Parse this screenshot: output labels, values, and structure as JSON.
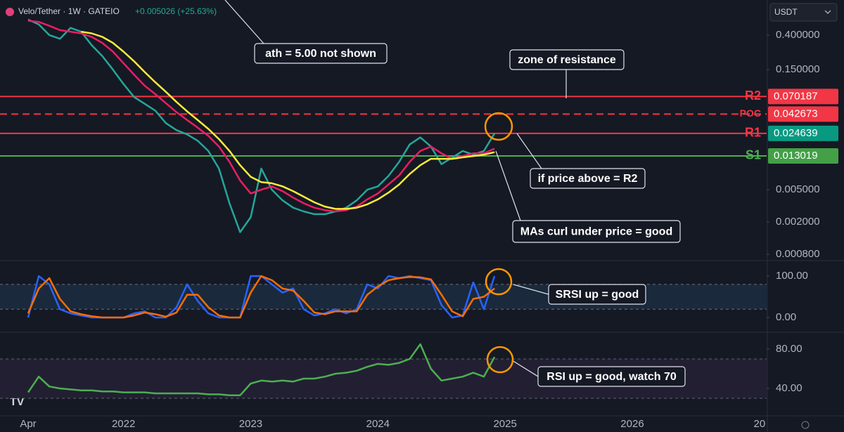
{
  "header": {
    "symbol": "Velo/Tether · 1W · GATEIO",
    "change": "+0.005026 (+25.63%)",
    "currency": "USDT"
  },
  "annotations": [
    "ath = 5.00 not shown",
    "zone of resistance",
    "if price above = R2",
    "MAs curl under price = good",
    "SRSI up = good",
    "RSI up = good, watch 70"
  ],
  "chart_data": [
    {
      "type": "line",
      "log_scale": true,
      "categories": [
        "Apr",
        null,
        null,
        null,
        null,
        null,
        null,
        null,
        null,
        "2022",
        null,
        null,
        null,
        null,
        null,
        null,
        null,
        null,
        null,
        null,
        null,
        "2023",
        null,
        null,
        null,
        null,
        null,
        null,
        null,
        null,
        null,
        null,
        null,
        "2024",
        null,
        null,
        null,
        null,
        null,
        null,
        null,
        null,
        null,
        null,
        null,
        "2025",
        null,
        null,
        null,
        null,
        null,
        null,
        null,
        null,
        null,
        null,
        null,
        "2026",
        null,
        null,
        null,
        null,
        null,
        null,
        null,
        null,
        null,
        null,
        null,
        "20"
      ],
      "ylim": [
        0.000684,
        1.08
      ],
      "yticks": [
        {
          "value": 0.4,
          "label": "0.400000"
        },
        {
          "value": 0.15,
          "label": "0.150000"
        },
        {
          "value": 0.005,
          "label": "0.005000"
        },
        {
          "value": 0.002,
          "label": "0.002000"
        },
        {
          "value": 0.0008,
          "label": "0.000800"
        }
      ],
      "series": [
        {
          "color": "#26a69a",
          "values": [
            0.62,
            0.54,
            0.4,
            0.36,
            0.49,
            0.44,
            0.3,
            0.22,
            0.15,
            0.1,
            0.069,
            0.057,
            0.047,
            0.033,
            0.027,
            0.024,
            0.02,
            0.015,
            0.0091,
            0.0034,
            0.0015,
            0.0023,
            0.0091,
            0.005,
            0.0037,
            0.003,
            0.0027,
            0.0025,
            0.0025,
            0.0027,
            0.003,
            0.0037,
            0.005,
            0.0055,
            0.0074,
            0.011,
            0.018,
            0.022,
            0.017,
            0.0103,
            0.0124,
            0.015,
            0.0135,
            0.015,
            0.0246,
            null,
            null,
            null,
            null,
            null,
            null,
            null,
            null,
            null,
            null,
            null,
            null,
            null,
            null,
            null,
            null,
            null,
            null,
            null,
            null,
            null,
            null,
            null,
            null,
            null
          ]
        },
        {
          "color": "#e91e63",
          "values": [
            0.6,
            0.58,
            0.52,
            0.46,
            0.44,
            0.42,
            0.38,
            0.32,
            0.25,
            0.18,
            0.13,
            0.095,
            0.075,
            0.058,
            0.045,
            0.036,
            0.029,
            0.023,
            0.017,
            0.011,
            0.0065,
            0.0045,
            0.005,
            0.0055,
            0.0048,
            0.004,
            0.0034,
            0.003,
            0.0028,
            0.0027,
            0.0028,
            0.0031,
            0.0038,
            0.0045,
            0.0058,
            0.0075,
            0.011,
            0.015,
            0.017,
            0.014,
            0.012,
            0.013,
            0.014,
            0.014,
            0.016,
            null,
            null,
            null,
            null,
            null,
            null,
            null,
            null,
            null,
            null,
            null,
            null,
            null,
            null,
            null,
            null,
            null,
            null,
            null,
            null,
            null,
            null,
            null,
            null,
            null
          ]
        },
        {
          "color": "#ffeb3b",
          "values": [
            null,
            null,
            null,
            null,
            null,
            0.44,
            0.42,
            0.38,
            0.32,
            0.25,
            0.19,
            0.14,
            0.105,
            0.08,
            0.06,
            0.046,
            0.036,
            0.028,
            0.021,
            0.015,
            0.01,
            0.0072,
            0.0062,
            0.006,
            0.0055,
            0.0048,
            0.0041,
            0.0035,
            0.0031,
            0.0029,
            0.0029,
            0.003,
            0.0033,
            0.0038,
            0.0046,
            0.0058,
            0.0078,
            0.01,
            0.012,
            0.012,
            0.012,
            0.0125,
            0.013,
            0.0135,
            0.0145,
            null,
            null,
            null,
            null,
            null,
            null,
            null,
            null,
            null,
            null,
            null,
            null,
            null,
            null,
            null,
            null,
            null,
            null,
            null,
            null,
            null,
            null,
            null,
            null,
            null
          ]
        }
      ],
      "levels": [
        {
          "name": "R2",
          "value": 0.070187,
          "color": "#f23645",
          "label_color": "#f23645",
          "dashed": false
        },
        {
          "name": "POC",
          "value": 0.042673,
          "color": "#f23645",
          "label_color": "#f23645",
          "dashed": true
        },
        {
          "name": "R1",
          "value": 0.024639,
          "color": "#f23645",
          "label_color": "#089981",
          "dashed": false
        },
        {
          "name": "S1",
          "value": 0.013019,
          "color": "#4caf50",
          "label_color": "#43a047",
          "dashed": false
        }
      ]
    },
    {
      "type": "line",
      "ylim": [
        -30.5,
        135.6
      ],
      "band": [
        20,
        80
      ],
      "band_color": "#1a2a3c",
      "yticks": [
        {
          "value": 100,
          "label": "100.00"
        },
        {
          "value": 0,
          "label": "0.00"
        }
      ],
      "series": [
        {
          "color": "#2962ff",
          "values": [
            0,
            100,
            80,
            20,
            10,
            5,
            0,
            0,
            0,
            0,
            10,
            15,
            0,
            0,
            25,
            80,
            40,
            10,
            0,
            0,
            0,
            100,
            100,
            80,
            60,
            70,
            20,
            5,
            10,
            20,
            10,
            20,
            80,
            70,
            100,
            95,
            100,
            95,
            90,
            30,
            0,
            5,
            85,
            20,
            100
          ]
        },
        {
          "color": "#ff6d00",
          "values": [
            10,
            70,
            95,
            45,
            15,
            8,
            3,
            0,
            0,
            0,
            5,
            12,
            8,
            2,
            12,
            55,
            55,
            25,
            5,
            0,
            0,
            60,
            100,
            90,
            70,
            65,
            40,
            12,
            8,
            15,
            15,
            15,
            55,
            75,
            90,
            95,
            98,
            97,
            92,
            55,
            15,
            3,
            45,
            50,
            70
          ]
        }
      ]
    },
    {
      "type": "line",
      "ylim": [
        13.6,
        95.7
      ],
      "band": [
        30,
        70
      ],
      "band_color": "#221f33",
      "yticks": [
        {
          "value": 80,
          "label": "80.00"
        },
        {
          "value": 40,
          "label": "40.00"
        }
      ],
      "series": [
        {
          "color": "#4caf50",
          "values": [
            36,
            52,
            42,
            40,
            39,
            38,
            38,
            37,
            37,
            36,
            36,
            36,
            35,
            35,
            35,
            35,
            35,
            34,
            34,
            33,
            33,
            45,
            48,
            47,
            48,
            47,
            50,
            50,
            52,
            55,
            56,
            58,
            62,
            65,
            64,
            66,
            70,
            85,
            60,
            48,
            50,
            52,
            56,
            52,
            72
          ]
        }
      ]
    }
  ]
}
